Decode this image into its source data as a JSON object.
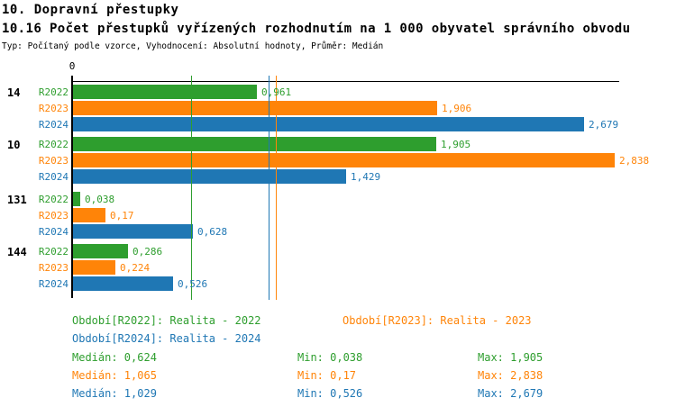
{
  "header": {
    "title": "10. Dopravní přestupky",
    "subtitle": "10.16 Počet přestupků vyřízených rozhodnutím na 1 000 obyvatel správního obvodu",
    "meta": "Typ: Počítaný podle vzorce, Vyhodnocení: Absolutní hodnoty, Průměr: Medián"
  },
  "colors": {
    "r2022": "#2E9E2E",
    "r2023": "#FF8408",
    "r2024": "#1F77B4",
    "axis": "#000000"
  },
  "chart_data": {
    "type": "bar",
    "orientation": "horizontal",
    "axis_zero_label": "0",
    "xlim": [
      0,
      2.866
    ],
    "grid": false,
    "series_labels": [
      "R2022",
      "R2023",
      "R2024"
    ],
    "series_keys": [
      "r2022",
      "r2023",
      "r2024"
    ],
    "groups": [
      {
        "label": "14",
        "values": [
          0.961,
          1.906,
          2.679
        ],
        "value_labels": [
          "0,961",
          "1,906",
          "2,679"
        ]
      },
      {
        "label": "10",
        "values": [
          1.905,
          2.838,
          1.429
        ],
        "value_labels": [
          "1,905",
          "2,838",
          "1,429"
        ]
      },
      {
        "label": "131",
        "values": [
          0.038,
          0.17,
          0.628
        ],
        "value_labels": [
          "0,038",
          "0,17",
          "0,628"
        ]
      },
      {
        "label": "144",
        "values": [
          0.286,
          0.224,
          0.526
        ],
        "value_labels": [
          "0,286",
          "0,224",
          "0,526"
        ]
      }
    ],
    "reference_lines": [
      {
        "name": "median-r2022",
        "series_key": "r2022",
        "value": 0.624
      },
      {
        "name": "median-r2024",
        "series_key": "r2024",
        "value": 1.029
      },
      {
        "name": "median-r2023",
        "series_key": "r2023",
        "value": 1.065
      }
    ]
  },
  "legend": {
    "period_r2022": "Období[R2022]: Realita - 2022",
    "period_r2023": "Období[R2023]: Realita - 2023",
    "period_r2024": "Období[R2024]: Realita - 2024",
    "median_r2022": "Medián: 0,624",
    "median_r2023": "Medián: 1,065",
    "median_r2024": "Medián: 1,029",
    "min_r2022": "Min: 0,038",
    "min_r2023": "Min: 0,17",
    "min_r2024": "Min: 0,526",
    "max_r2022": "Max: 1,905",
    "max_r2023": "Max: 2,838",
    "max_r2024": "Max: 2,679"
  }
}
